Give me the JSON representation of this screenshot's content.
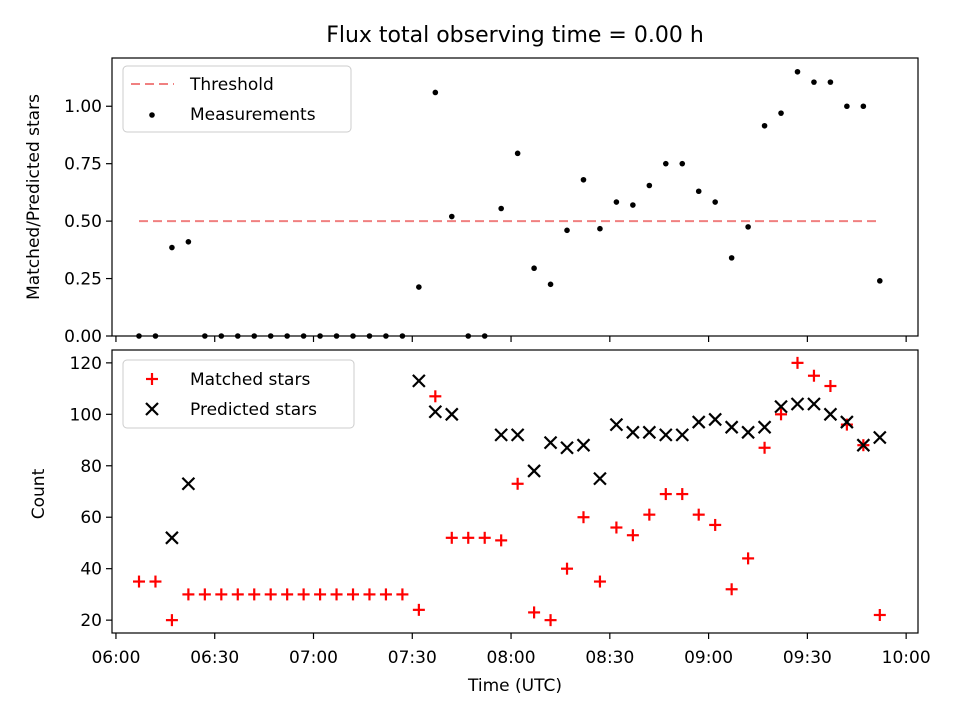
{
  "figure": {
    "title": "Flux total observing time = 0.00 h"
  },
  "chart_data": [
    {
      "type": "scatter",
      "ylabel": "Matched/Predicted stars",
      "ylim": [
        0,
        1.21
      ],
      "xlim": [
        5.98,
        10.06
      ],
      "y_ticks": [
        0,
        0.25,
        0.5,
        0.75,
        1.0
      ],
      "y_tick_labels": [
        "0.00",
        "0.25",
        "0.50",
        "0.75",
        "1.00"
      ],
      "legend": {
        "position": "top-left",
        "threshold_label": "Threshold",
        "measurements_label": "Measurements"
      },
      "threshold": {
        "value": 0.5,
        "x_start": "06:07",
        "x_end": "09:52",
        "color": "#f08080"
      },
      "series": [
        {
          "name": "Measurements",
          "color": "#000000",
          "x": [
            "06:07",
            "06:12",
            "06:17",
            "06:22",
            "06:27",
            "06:32",
            "06:37",
            "06:42",
            "06:47",
            "06:52",
            "06:57",
            "07:02",
            "07:07",
            "07:12",
            "07:17",
            "07:22",
            "07:27",
            "07:32",
            "07:37",
            "07:42",
            "07:47",
            "07:52",
            "07:57",
            "08:02",
            "08:07",
            "08:12",
            "08:17",
            "08:22",
            "08:27",
            "08:32",
            "08:37",
            "08:42",
            "08:47",
            "08:52",
            "08:57",
            "09:02",
            "09:07",
            "09:12",
            "09:17",
            "09:22",
            "09:27",
            "09:32",
            "09:37",
            "09:42",
            "09:47",
            "09:52"
          ],
          "y": [
            0,
            0,
            0.385,
            0.41,
            0,
            0,
            0,
            0,
            0,
            0,
            0,
            0,
            0,
            0,
            0,
            0,
            0,
            0.213,
            1.06,
            0.52,
            0,
            0,
            0.555,
            0.795,
            0.295,
            0.225,
            0.46,
            0.68,
            0.467,
            0.583,
            0.57,
            0.655,
            0.75,
            0.75,
            0.63,
            0.583,
            0.34,
            0.475,
            0.915,
            0.97,
            1.15,
            1.105,
            1.105,
            1.0,
            1.0,
            0.24
          ]
        }
      ]
    },
    {
      "type": "scatter",
      "xlabel": "Time (UTC)",
      "ylabel": "Count",
      "ylim": [
        15,
        125
      ],
      "xlim": [
        5.98,
        10.06
      ],
      "y_ticks": [
        20,
        40,
        60,
        80,
        100,
        120
      ],
      "y_tick_labels": [
        "20",
        "40",
        "60",
        "80",
        "100",
        "120"
      ],
      "x_ticks": [
        6.0,
        6.5,
        7.0,
        7.5,
        8.0,
        8.5,
        9.0,
        9.5,
        10.0
      ],
      "x_tick_labels": [
        "06:00",
        "06:30",
        "07:00",
        "07:30",
        "08:00",
        "08:30",
        "09:00",
        "09:30",
        "10:00"
      ],
      "legend": {
        "position": "top-left"
      },
      "series": [
        {
          "name": "Matched stars",
          "marker": "plus",
          "color": "#ff0000",
          "x": [
            "06:07",
            "06:12",
            "06:17",
            "06:22",
            "06:27",
            "06:32",
            "06:37",
            "06:42",
            "06:47",
            "06:52",
            "06:57",
            "07:02",
            "07:07",
            "07:12",
            "07:17",
            "07:22",
            "07:27",
            "07:32",
            "07:37",
            "07:42",
            "07:47",
            "07:52",
            "07:57",
            "08:02",
            "08:07",
            "08:12",
            "08:17",
            "08:22",
            "08:27",
            "08:32",
            "08:37",
            "08:42",
            "08:47",
            "08:52",
            "08:57",
            "09:02",
            "09:07",
            "09:12",
            "09:17",
            "09:22",
            "09:27",
            "09:32",
            "09:37",
            "09:42",
            "09:47",
            "09:52"
          ],
          "y": [
            35,
            35,
            20,
            30,
            30,
            30,
            30,
            30,
            30,
            30,
            30,
            30,
            30,
            30,
            30,
            30,
            30,
            24,
            107,
            52,
            52,
            52,
            51,
            73,
            23,
            20,
            40,
            60,
            35,
            56,
            53,
            61,
            69,
            69,
            61,
            57,
            32,
            44,
            87,
            100,
            120,
            115,
            111,
            96,
            88,
            22
          ]
        },
        {
          "name": "Predicted stars",
          "marker": "x",
          "color": "#000000",
          "x": [
            "06:17",
            "06:22",
            "07:32",
            "07:37",
            "07:42",
            "07:57",
            "08:02",
            "08:07",
            "08:12",
            "08:17",
            "08:22",
            "08:27",
            "08:32",
            "08:37",
            "08:42",
            "08:47",
            "08:52",
            "08:57",
            "09:02",
            "09:07",
            "09:12",
            "09:17",
            "09:22",
            "09:27",
            "09:32",
            "09:37",
            "09:42",
            "09:47",
            "09:52"
          ],
          "y": [
            52,
            73,
            113,
            101,
            100,
            92,
            92,
            78,
            89,
            87,
            88,
            75,
            96,
            93,
            93,
            92,
            92,
            97,
            98,
            95,
            93,
            95,
            103,
            104,
            104,
            100,
            97,
            88,
            91
          ]
        }
      ]
    }
  ]
}
